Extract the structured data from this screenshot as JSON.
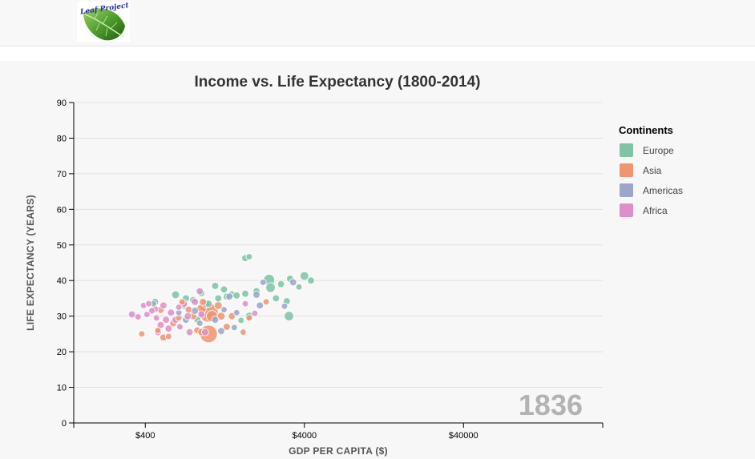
{
  "header": {
    "logo_text": "Leaf Project"
  },
  "colors": {
    "Europe": "#7ec4a5",
    "Asia": "#ef9570",
    "Americas": "#9aa6cc",
    "Africa": "#de8fc9",
    "gridline": "#e0e0e0",
    "year_label": "#b3b3b3"
  },
  "chart_data": {
    "type": "scatter",
    "title": "Income vs. Life Expectancy (1800-2014)",
    "xlabel": "GDP PER CAPITA ($)",
    "ylabel": "LIFE EXPECTANCY (YEARS)",
    "xscale": "log",
    "xlim": [
      142,
      300000
    ],
    "ylim": [
      0,
      90
    ],
    "x_ticks": [
      400,
      4000,
      40000
    ],
    "x_tick_labels": [
      "$400",
      "$4000",
      "$40000"
    ],
    "y_ticks": [
      0,
      10,
      20,
      30,
      40,
      50,
      60,
      70,
      80,
      90
    ],
    "grid": true,
    "year": "1836",
    "legend": {
      "title": "Continents",
      "position": "right",
      "items": [
        "Europe",
        "Asia",
        "Americas",
        "Africa"
      ]
    },
    "points": [
      {
        "c": "Europe",
        "x": 1700,
        "y": 46.3,
        "s": 9
      },
      {
        "c": "Europe",
        "x": 1800,
        "y": 46.7,
        "s": 8
      },
      {
        "c": "Europe",
        "x": 4000,
        "y": 41.3,
        "s": 11
      },
      {
        "c": "Europe",
        "x": 4400,
        "y": 40.0,
        "s": 9
      },
      {
        "c": "Europe",
        "x": 2400,
        "y": 40.2,
        "s": 14
      },
      {
        "c": "Europe",
        "x": 2850,
        "y": 39.0,
        "s": 9
      },
      {
        "c": "Europe",
        "x": 3250,
        "y": 40.5,
        "s": 9
      },
      {
        "c": "Europe",
        "x": 3700,
        "y": 38.2,
        "s": 8
      },
      {
        "c": "Europe",
        "x": 2450,
        "y": 38.0,
        "s": 12
      },
      {
        "c": "Europe",
        "x": 2000,
        "y": 37.0,
        "s": 9
      },
      {
        "c": "Europe",
        "x": 1700,
        "y": 36.3,
        "s": 9
      },
      {
        "c": "Europe",
        "x": 1400,
        "y": 36.1,
        "s": 9
      },
      {
        "c": "Europe",
        "x": 1250,
        "y": 37.5,
        "s": 9
      },
      {
        "c": "Europe",
        "x": 1100,
        "y": 38.5,
        "s": 9
      },
      {
        "c": "Europe",
        "x": 2650,
        "y": 35.0,
        "s": 9
      },
      {
        "c": "Europe",
        "x": 3100,
        "y": 34.2,
        "s": 9
      },
      {
        "c": "Europe",
        "x": 3200,
        "y": 30.0,
        "s": 12
      },
      {
        "c": "Europe",
        "x": 1800,
        "y": 30.0,
        "s": 10
      },
      {
        "c": "Europe",
        "x": 1600,
        "y": 28.8,
        "s": 8
      },
      {
        "c": "Europe",
        "x": 620,
        "y": 36.0,
        "s": 10
      },
      {
        "c": "Europe",
        "x": 720,
        "y": 35.0,
        "s": 9
      },
      {
        "c": "Europe",
        "x": 800,
        "y": 34.5,
        "s": 9
      },
      {
        "c": "Europe",
        "x": 900,
        "y": 36.5,
        "s": 9
      },
      {
        "c": "Europe",
        "x": 1000,
        "y": 33.5,
        "s": 9
      },
      {
        "c": "Europe",
        "x": 1150,
        "y": 35.0,
        "s": 9
      },
      {
        "c": "Europe",
        "x": 700,
        "y": 33.0,
        "s": 9
      },
      {
        "c": "Europe",
        "x": 850,
        "y": 29.0,
        "s": 9
      },
      {
        "c": "Europe",
        "x": 450,
        "y": 33.5,
        "s": 8
      },
      {
        "c": "Europe",
        "x": 1300,
        "y": 35.5,
        "s": 9
      },
      {
        "c": "Europe",
        "x": 1500,
        "y": 35.8,
        "s": 9
      },
      {
        "c": "Asia",
        "x": 1000,
        "y": 25.0,
        "s": 22
      },
      {
        "c": "Asia",
        "x": 1000,
        "y": 31.0,
        "s": 24
      },
      {
        "c": "Asia",
        "x": 1050,
        "y": 30.0,
        "s": 14
      },
      {
        "c": "Asia",
        "x": 900,
        "y": 32.0,
        "s": 12
      },
      {
        "c": "Asia",
        "x": 1200,
        "y": 30.0,
        "s": 10
      },
      {
        "c": "Asia",
        "x": 1150,
        "y": 33.0,
        "s": 10
      },
      {
        "c": "Asia",
        "x": 1400,
        "y": 30.0,
        "s": 9
      },
      {
        "c": "Asia",
        "x": 1650,
        "y": 25.5,
        "s": 8
      },
      {
        "c": "Asia",
        "x": 1800,
        "y": 29.5,
        "s": 8
      },
      {
        "c": "Asia",
        "x": 2300,
        "y": 34.0,
        "s": 8
      },
      {
        "c": "Asia",
        "x": 380,
        "y": 25.0,
        "s": 8
      },
      {
        "c": "Asia",
        "x": 520,
        "y": 24.0,
        "s": 9
      },
      {
        "c": "Asia",
        "x": 560,
        "y": 24.3,
        "s": 8
      },
      {
        "c": "Asia",
        "x": 480,
        "y": 26.0,
        "s": 8
      },
      {
        "c": "Asia",
        "x": 600,
        "y": 28.0,
        "s": 9
      },
      {
        "c": "Asia",
        "x": 500,
        "y": 31.8,
        "s": 9
      },
      {
        "c": "Asia",
        "x": 750,
        "y": 31.8,
        "s": 9
      },
      {
        "c": "Asia",
        "x": 800,
        "y": 30.0,
        "s": 9
      },
      {
        "c": "Asia",
        "x": 650,
        "y": 29.5,
        "s": 8
      },
      {
        "c": "Asia",
        "x": 850,
        "y": 26.0,
        "s": 9
      },
      {
        "c": "Asia",
        "x": 900,
        "y": 25.5,
        "s": 9
      },
      {
        "c": "Asia",
        "x": 1300,
        "y": 27.0,
        "s": 9
      },
      {
        "c": "Asia",
        "x": 920,
        "y": 34.0,
        "s": 9
      },
      {
        "c": "Asia",
        "x": 680,
        "y": 34.0,
        "s": 8
      },
      {
        "c": "Americas",
        "x": 2000,
        "y": 36.0,
        "s": 9
      },
      {
        "c": "Americas",
        "x": 2200,
        "y": 39.5,
        "s": 8
      },
      {
        "c": "Americas",
        "x": 2100,
        "y": 33.0,
        "s": 9
      },
      {
        "c": "Americas",
        "x": 3000,
        "y": 32.8,
        "s": 8
      },
      {
        "c": "Americas",
        "x": 3400,
        "y": 39.5,
        "s": 9
      },
      {
        "c": "Americas",
        "x": 1350,
        "y": 35.5,
        "s": 9
      },
      {
        "c": "Americas",
        "x": 1500,
        "y": 31.0,
        "s": 8
      },
      {
        "c": "Americas",
        "x": 1200,
        "y": 25.8,
        "s": 9
      },
      {
        "c": "Americas",
        "x": 1450,
        "y": 26.8,
        "s": 8
      },
      {
        "c": "Americas",
        "x": 960,
        "y": 33.5,
        "s": 10
      },
      {
        "c": "Americas",
        "x": 820,
        "y": 31.5,
        "s": 9
      },
      {
        "c": "Americas",
        "x": 720,
        "y": 29.0,
        "s": 9
      },
      {
        "c": "Americas",
        "x": 650,
        "y": 31.0,
        "s": 8
      },
      {
        "c": "Americas",
        "x": 460,
        "y": 34.0,
        "s": 9
      },
      {
        "c": "Americas",
        "x": 1100,
        "y": 29.0,
        "s": 9
      },
      {
        "c": "Americas",
        "x": 880,
        "y": 28.0,
        "s": 8
      },
      {
        "c": "Americas",
        "x": 1250,
        "y": 31.8,
        "s": 8
      },
      {
        "c": "Africa",
        "x": 330,
        "y": 30.5,
        "s": 9
      },
      {
        "c": "Africa",
        "x": 360,
        "y": 29.8,
        "s": 8
      },
      {
        "c": "Africa",
        "x": 390,
        "y": 33.0,
        "s": 8
      },
      {
        "c": "Africa",
        "x": 410,
        "y": 30.5,
        "s": 8
      },
      {
        "c": "Africa",
        "x": 420,
        "y": 33.5,
        "s": 8
      },
      {
        "c": "Africa",
        "x": 440,
        "y": 31.5,
        "s": 8
      },
      {
        "c": "Africa",
        "x": 460,
        "y": 32.0,
        "s": 9
      },
      {
        "c": "Africa",
        "x": 470,
        "y": 29.5,
        "s": 8
      },
      {
        "c": "Africa",
        "x": 480,
        "y": 25.5,
        "s": 9
      },
      {
        "c": "Africa",
        "x": 500,
        "y": 27.5,
        "s": 9
      },
      {
        "c": "Africa",
        "x": 520,
        "y": 33.0,
        "s": 9
      },
      {
        "c": "Africa",
        "x": 540,
        "y": 29.0,
        "s": 9
      },
      {
        "c": "Africa",
        "x": 560,
        "y": 26.5,
        "s": 9
      },
      {
        "c": "Africa",
        "x": 580,
        "y": 31.0,
        "s": 9
      },
      {
        "c": "Africa",
        "x": 620,
        "y": 29.0,
        "s": 9
      },
      {
        "c": "Africa",
        "x": 650,
        "y": 32.5,
        "s": 8
      },
      {
        "c": "Africa",
        "x": 660,
        "y": 27.0,
        "s": 8
      },
      {
        "c": "Africa",
        "x": 700,
        "y": 33.5,
        "s": 9
      },
      {
        "c": "Africa",
        "x": 740,
        "y": 30.0,
        "s": 9
      },
      {
        "c": "Africa",
        "x": 760,
        "y": 25.5,
        "s": 9
      },
      {
        "c": "Africa",
        "x": 820,
        "y": 34.0,
        "s": 9
      },
      {
        "c": "Africa",
        "x": 880,
        "y": 37.0,
        "s": 9
      },
      {
        "c": "Africa",
        "x": 900,
        "y": 30.5,
        "s": 9
      },
      {
        "c": "Africa",
        "x": 950,
        "y": 25.5,
        "s": 9
      },
      {
        "c": "Africa",
        "x": 1700,
        "y": 33.5,
        "s": 8
      },
      {
        "c": "Africa",
        "x": 1950,
        "y": 30.8,
        "s": 8
      }
    ]
  }
}
